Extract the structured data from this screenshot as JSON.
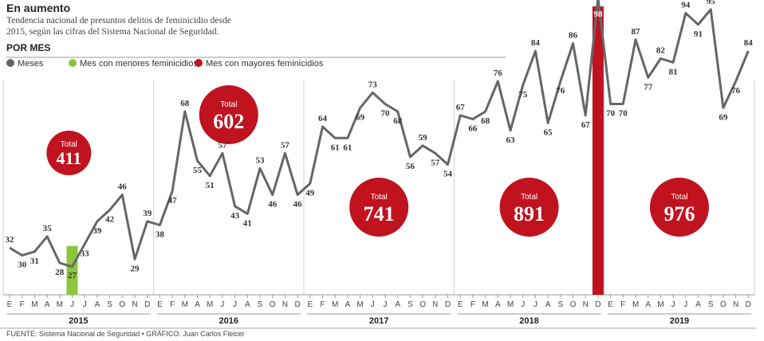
{
  "header": {
    "title": "En aumento",
    "subtitle": "Tendencia nacional de presuntos delitos de feminicidio desde 2015, según las cifras del Sistema Nacional de Seguridad.",
    "section_label": "POR MES"
  },
  "legend": {
    "items": [
      {
        "label": "Meses",
        "color": "#666666"
      },
      {
        "label": "Mes con menores feminicidios",
        "color": "#8cc63f"
      },
      {
        "label": "Mes con mayores feminicidios",
        "color": "#c1121f"
      }
    ]
  },
  "footer": {
    "source": "FUENTE: Sistema Nacional de Seguridad • GRÁFICO: Juan Carlos Fleicer"
  },
  "chart_data": {
    "type": "line",
    "months": [
      "E",
      "F",
      "M",
      "A",
      "M",
      "J",
      "J",
      "A",
      "S",
      "O",
      "N",
      "D"
    ],
    "years": [
      "2015",
      "2016",
      "2017",
      "2018",
      "2019"
    ],
    "values": [
      32,
      30,
      31,
      35,
      28,
      27,
      33,
      39,
      42,
      46,
      29,
      39,
      38,
      47,
      68,
      55,
      51,
      57,
      43,
      41,
      53,
      46,
      57,
      46,
      49,
      64,
      61,
      61,
      69,
      73,
      70,
      68,
      56,
      59,
      57,
      54,
      67,
      66,
      68,
      76,
      63,
      75,
      84,
      65,
      76,
      86,
      67,
      98,
      70,
      70,
      87,
      77,
      82,
      81,
      94,
      91,
      95,
      69,
      76,
      84
    ],
    "min_index": 5,
    "max_index": 47,
    "totals": [
      {
        "year": "2015",
        "label": "Total",
        "value": "411"
      },
      {
        "year": "2016",
        "label": "Total",
        "value": "602"
      },
      {
        "year": "2017",
        "label": "Total",
        "value": "741"
      },
      {
        "year": "2018",
        "label": "Total",
        "value": "891"
      },
      {
        "year": "2019",
        "label": "Total",
        "value": "976"
      }
    ],
    "colors": {
      "line": "#666666",
      "min": "#8cc63f",
      "max": "#c1121f",
      "total_bubble": "#c1121f"
    }
  }
}
